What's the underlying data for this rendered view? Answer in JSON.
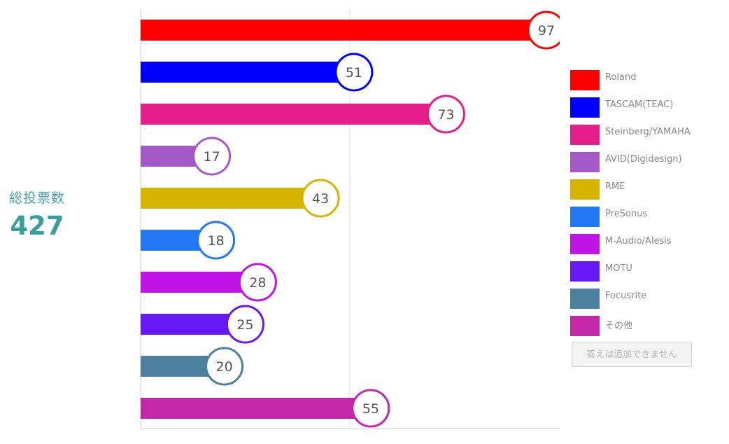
{
  "total": {
    "label": "総投票数",
    "value": "427"
  },
  "add_button": {
    "label": "答えは追加できません"
  },
  "chart_data": {
    "type": "bar",
    "orientation": "horizontal",
    "categories": [
      "Roland",
      "TASCAM(TEAC)",
      "Steinberg/YAMAHA",
      "AVID(Digidesign)",
      "RME",
      "PreSonus",
      "M-Audio/Alesis",
      "MOTU",
      "Focusrite",
      "その他"
    ],
    "values": [
      97,
      51,
      73,
      17,
      43,
      18,
      28,
      25,
      20,
      55
    ],
    "colors": [
      "#ff0000",
      "#0000ff",
      "#e61e8c",
      "#a459c9",
      "#d6b400",
      "#2277f2",
      "#c014e6",
      "#6618f5",
      "#4d7fa0",
      "#c428a9"
    ],
    "xlim": [
      0,
      100
    ],
    "grid": true,
    "legend": "right",
    "value_labels": "circle at bar end"
  }
}
